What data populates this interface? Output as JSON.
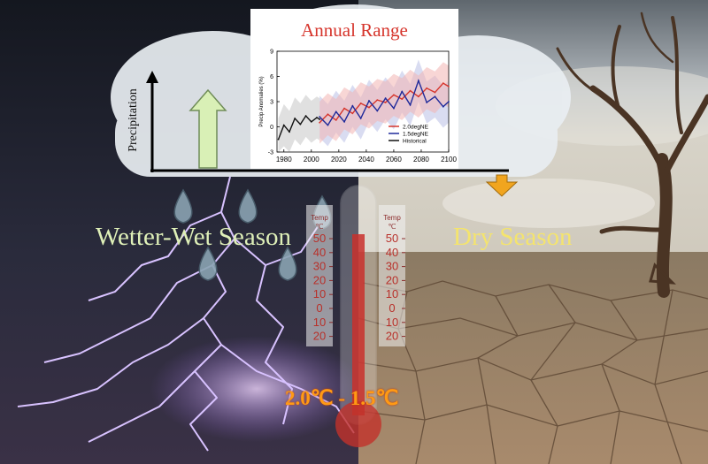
{
  "labels": {
    "wet_season": "Wetter-Wet Season",
    "dry_season": "Dry Season",
    "temperature_range": "2.0℃ - 1.5℃",
    "precipitation_axis": "Precipitation"
  },
  "thermometer": {
    "title": "Temp",
    "unit": "℃",
    "ticks": [
      "50",
      "40",
      "30",
      "20",
      "10",
      "0",
      "10",
      "20"
    ]
  },
  "colors": {
    "wet_sky": "#1a1f2b",
    "dry_sky": "#9aa4ad",
    "lightning": "#c9a8ff",
    "cloud": "#e9eef2",
    "up_arrow": "#d9f0b6",
    "down_arrow": "#f1a51f",
    "drop": "#8aa3b2",
    "cracked_earth": "#9b7f64"
  },
  "chart_data": {
    "type": "line",
    "title": "Annual Range",
    "ylabel": "Precip Anomalies (%)",
    "xlabel": "",
    "xlim": [
      1975,
      2100
    ],
    "ylim": [
      -3,
      9
    ],
    "xticks": [
      "1980",
      "2000",
      "2020",
      "2040",
      "2060",
      "2080",
      "2100"
    ],
    "yticks": [
      "9",
      "6",
      "3",
      "0",
      "-3"
    ],
    "legend_position": "bottom-right",
    "series": [
      {
        "name": "2.0degNE",
        "color": "#d6352c",
        "x": [
          2006,
          2012,
          2018,
          2024,
          2030,
          2036,
          2042,
          2048,
          2054,
          2060,
          2066,
          2072,
          2078,
          2084,
          2090,
          2096,
          2100
        ],
        "y": [
          0.5,
          1.5,
          0.8,
          2.2,
          1.6,
          2.8,
          2.3,
          3.2,
          2.9,
          3.8,
          3.3,
          4.3,
          3.6,
          4.6,
          4.1,
          5.2,
          4.8
        ]
      },
      {
        "name": "1.5degNE",
        "color": "#1f2a9a",
        "x": [
          2006,
          2012,
          2018,
          2024,
          2030,
          2036,
          2042,
          2048,
          2054,
          2060,
          2066,
          2072,
          2078,
          2084,
          2090,
          2096,
          2100
        ],
        "y": [
          1.2,
          0.2,
          1.8,
          0.6,
          2.5,
          1.0,
          3.1,
          1.9,
          3.4,
          2.2,
          4.2,
          2.6,
          5.5,
          2.9,
          3.6,
          2.4,
          3.0
        ]
      },
      {
        "name": "Historical",
        "color": "#111111",
        "x": [
          1976,
          1980,
          1984,
          1988,
          1992,
          1996,
          2000,
          2004,
          2006
        ],
        "y": [
          -1.5,
          0.2,
          -0.6,
          1.0,
          0.3,
          1.3,
          0.6,
          1.1,
          0.9
        ]
      }
    ]
  }
}
